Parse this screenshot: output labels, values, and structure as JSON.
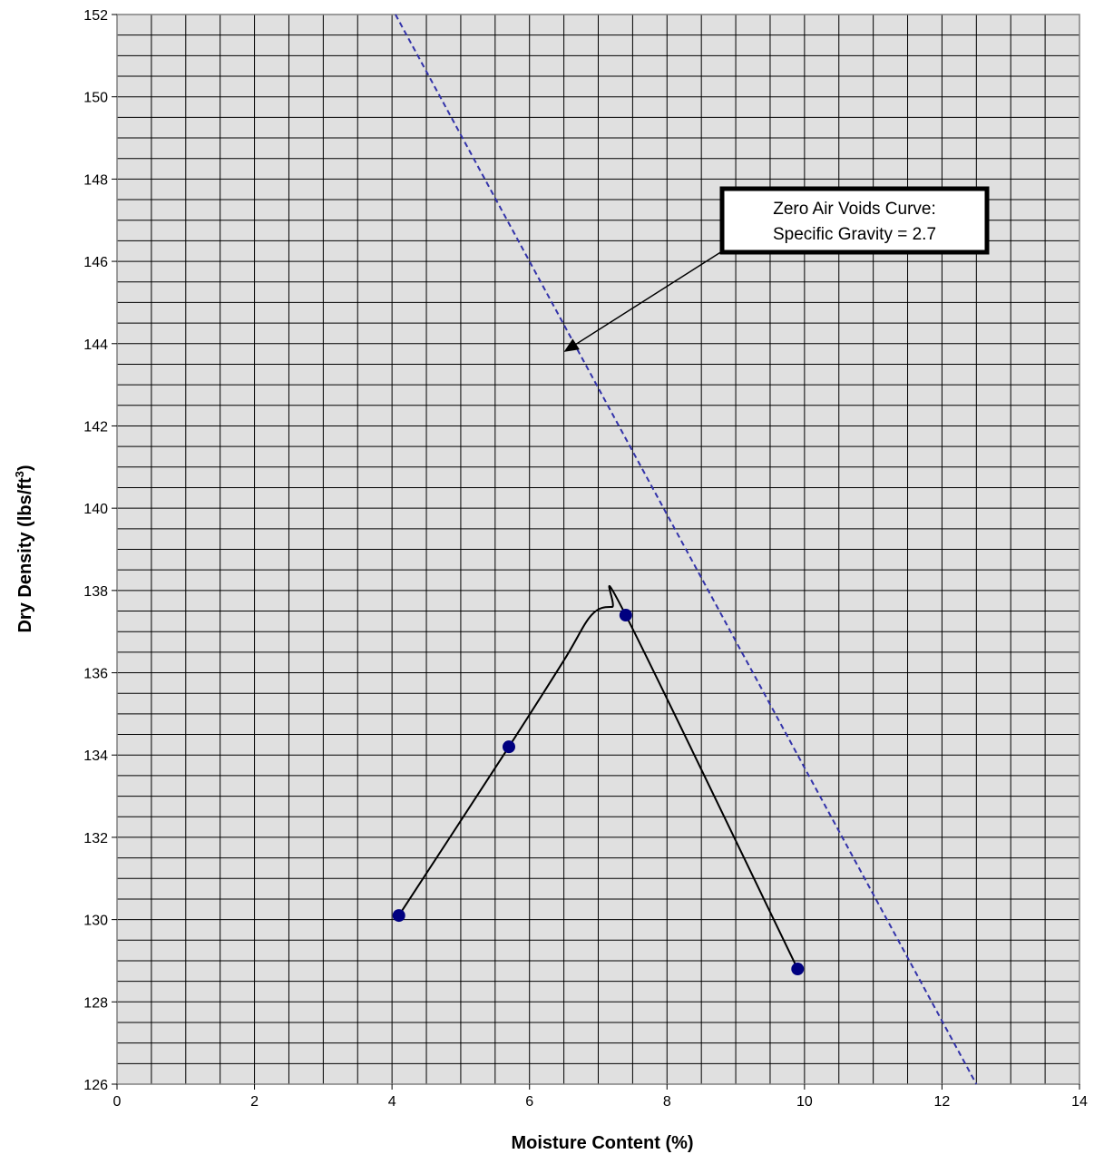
{
  "chart_data": {
    "type": "scatter",
    "title": "",
    "xlabel": "Moisture Content (%)",
    "ylabel": {
      "main": "Dry Density (lbs/ft",
      "superscript": "3",
      "suffix": ")"
    },
    "xlim": [
      0,
      14
    ],
    "ylim": [
      126,
      152
    ],
    "x_major_ticks": [
      0,
      2,
      4,
      6,
      8,
      10,
      12,
      14
    ],
    "y_major_ticks": [
      126,
      128,
      130,
      132,
      134,
      136,
      138,
      140,
      142,
      144,
      146,
      148,
      150,
      152
    ],
    "x_minor_step": 0.5,
    "y_minor_step": 0.5,
    "grid": true,
    "legend": "none",
    "colors": {
      "plot_background": "#e0e0e0",
      "grid": "#000000",
      "points": "#000080",
      "compaction_curve": "#000000",
      "zav_curve": "#3333aa"
    },
    "series": [
      {
        "kind": "points",
        "points": [
          {
            "x": 4.1,
            "y": 130.1
          },
          {
            "x": 5.7,
            "y": 134.2
          },
          {
            "x": 7.4,
            "y": 137.4
          },
          {
            "x": 9.9,
            "y": 128.8
          }
        ]
      },
      {
        "kind": "curve",
        "points": [
          {
            "x": 4.1,
            "y": 130.1
          },
          {
            "x": 5.7,
            "y": 134.2
          },
          {
            "x": 6.5,
            "y": 136.3
          },
          {
            "x": 6.9,
            "y": 137.4
          },
          {
            "x": 7.2,
            "y": 137.6
          },
          {
            "x": 7.4,
            "y": 137.4
          },
          {
            "x": 9.9,
            "y": 128.8
          }
        ]
      },
      {
        "kind": "dashed-line",
        "points": [
          {
            "x": 4.05,
            "y": 152.0
          },
          {
            "x": 12.5,
            "y": 126.0
          }
        ]
      }
    ],
    "annotations": [
      {
        "lines": [
          "Zero Air Voids Curve:",
          "Specific Gravity = 2.7"
        ],
        "arrow_target": {
          "x": 6.5,
          "y": 143.8
        }
      }
    ]
  }
}
